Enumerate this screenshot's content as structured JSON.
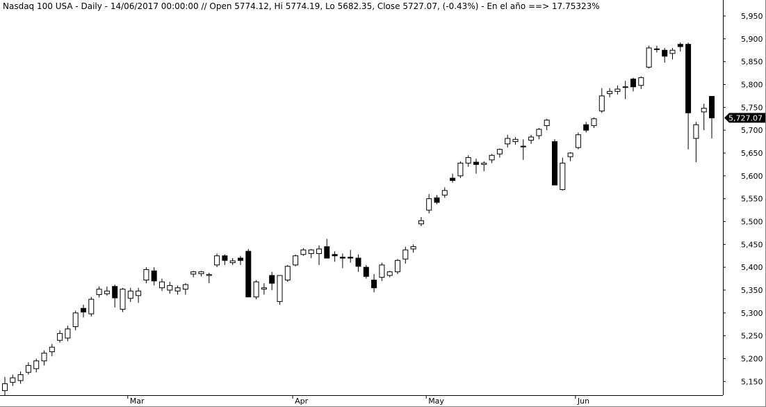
{
  "header": {
    "text": "Nasdaq 100 USA - Daily - 14/06/2017 00:00:00 // Open 5774.12, Hi 5774.19, Lo 5682.35, Close 5727.07, (-0.43%) - En el año ==> 17.75323%"
  },
  "chart_data": {
    "type": "candlestick",
    "symbol": "Nasdaq 100 USA",
    "timeframe": "Daily",
    "last_date": "14/06/2017 00:00:00",
    "last_bar": {
      "open": 5774.12,
      "high": 5774.19,
      "low": 5682.35,
      "close": 5727.07,
      "change_pct": -0.43
    },
    "ytd_pct": 17.75323,
    "price_label": "5,727.07",
    "price_label_value": 5727.07,
    "ylim": [
      5120,
      5985
    ],
    "y_ticks": [
      {
        "value": 5150,
        "label": "5,150"
      },
      {
        "value": 5200,
        "label": "5,200"
      },
      {
        "value": 5250,
        "label": "5,250"
      },
      {
        "value": 5300,
        "label": "5,300"
      },
      {
        "value": 5350,
        "label": "5,350"
      },
      {
        "value": 5400,
        "label": "5,400"
      },
      {
        "value": 5450,
        "label": "5,450"
      },
      {
        "value": 5500,
        "label": "5,500"
      },
      {
        "value": 5550,
        "label": "5,550"
      },
      {
        "value": 5600,
        "label": "5,600"
      },
      {
        "value": 5650,
        "label": "5,650"
      },
      {
        "value": 5700,
        "label": "5,700"
      },
      {
        "value": 5750,
        "label": "5,750"
      },
      {
        "value": 5800,
        "label": "5,800"
      },
      {
        "value": 5850,
        "label": "5,850"
      },
      {
        "value": 5900,
        "label": "5,900"
      },
      {
        "value": 5950,
        "label": "5,950"
      }
    ],
    "x_ticks": [
      {
        "index": 16,
        "label": "Mar"
      },
      {
        "index": 37,
        "label": "Apr"
      },
      {
        "index": 54,
        "label": "May"
      },
      {
        "index": 73,
        "label": "Jun"
      }
    ],
    "candles": [
      [
        5130,
        5160,
        5120,
        5145
      ],
      [
        5148,
        5165,
        5140,
        5158
      ],
      [
        5152,
        5172,
        5145,
        5165
      ],
      [
        5170,
        5192,
        5165,
        5185
      ],
      [
        5178,
        5200,
        5170,
        5195
      ],
      [
        5195,
        5218,
        5185,
        5212
      ],
      [
        5215,
        5232,
        5205,
        5225
      ],
      [
        5240,
        5262,
        5235,
        5255
      ],
      [
        5245,
        5272,
        5238,
        5265
      ],
      [
        5270,
        5305,
        5262,
        5300
      ],
      [
        5310,
        5318,
        5290,
        5302
      ],
      [
        5298,
        5335,
        5292,
        5330
      ],
      [
        5340,
        5358,
        5334,
        5352
      ],
      [
        5342,
        5358,
        5338,
        5348
      ],
      [
        5358,
        5362,
        5312,
        5333
      ],
      [
        5308,
        5355,
        5302,
        5352
      ],
      [
        5332,
        5355,
        5324,
        5348
      ],
      [
        5338,
        5355,
        5322,
        5348
      ],
      [
        5372,
        5400,
        5365,
        5395
      ],
      [
        5392,
        5400,
        5360,
        5370
      ],
      [
        5355,
        5375,
        5348,
        5368
      ],
      [
        5350,
        5368,
        5342,
        5360
      ],
      [
        5348,
        5360,
        5340,
        5355
      ],
      [
        5352,
        5365,
        5340,
        5362
      ],
      [
        5385,
        5392,
        5378,
        5390
      ],
      [
        5386,
        5392,
        5380,
        5390
      ],
      [
        5382,
        5388,
        5365,
        5384
      ],
      [
        5405,
        5430,
        5400,
        5425
      ],
      [
        5425,
        5428,
        5405,
        5415
      ],
      [
        5410,
        5420,
        5405,
        5414
      ],
      [
        5420,
        5425,
        5405,
        5415
      ],
      [
        5435,
        5440,
        5335,
        5335
      ],
      [
        5335,
        5372,
        5330,
        5368
      ],
      [
        5352,
        5365,
        5340,
        5355
      ],
      [
        5382,
        5390,
        5350,
        5365
      ],
      [
        5325,
        5382,
        5318,
        5382
      ],
      [
        5372,
        5405,
        5368,
        5402
      ],
      [
        5405,
        5428,
        5402,
        5425
      ],
      [
        5428,
        5442,
        5425,
        5438
      ],
      [
        5430,
        5440,
        5420,
        5438
      ],
      [
        5430,
        5448,
        5405,
        5440
      ],
      [
        5445,
        5462,
        5420,
        5420
      ],
      [
        5428,
        5435,
        5412,
        5425
      ],
      [
        5422,
        5430,
        5398,
        5420
      ],
      [
        5422,
        5438,
        5410,
        5420
      ],
      [
        5420,
        5428,
        5390,
        5402
      ],
      [
        5400,
        5405,
        5375,
        5380
      ],
      [
        5372,
        5385,
        5345,
        5355
      ],
      [
        5378,
        5410,
        5370,
        5405
      ],
      [
        5382,
        5392,
        5378,
        5390
      ],
      [
        5390,
        5418,
        5385,
        5415
      ],
      [
        5418,
        5445,
        5408,
        5438
      ],
      [
        5440,
        5450,
        5432,
        5445
      ],
      [
        5495,
        5510,
        5490,
        5502
      ],
      [
        5525,
        5560,
        5518,
        5550
      ],
      [
        5552,
        5558,
        5538,
        5542
      ],
      [
        5558,
        5575,
        5552,
        5568
      ],
      [
        5595,
        5605,
        5585,
        5590
      ],
      [
        5600,
        5632,
        5595,
        5628
      ],
      [
        5628,
        5645,
        5620,
        5640
      ],
      [
        5630,
        5638,
        5605,
        5625
      ],
      [
        5625,
        5632,
        5610,
        5628
      ],
      [
        5635,
        5648,
        5628,
        5645
      ],
      [
        5648,
        5660,
        5640,
        5658
      ],
      [
        5670,
        5690,
        5662,
        5682
      ],
      [
        5675,
        5685,
        5668,
        5680
      ],
      [
        5665,
        5680,
        5635,
        5665
      ],
      [
        5678,
        5690,
        5670,
        5685
      ],
      [
        5688,
        5705,
        5680,
        5702
      ],
      [
        5710,
        5725,
        5700,
        5722
      ],
      [
        5675,
        5680,
        5580,
        5580
      ],
      [
        5570,
        5640,
        5568,
        5628
      ],
      [
        5642,
        5652,
        5632,
        5650
      ],
      [
        5662,
        5695,
        5658,
        5690
      ],
      [
        5712,
        5718,
        5695,
        5700
      ],
      [
        5710,
        5728,
        5705,
        5725
      ],
      [
        5742,
        5792,
        5738,
        5775
      ],
      [
        5780,
        5792,
        5772,
        5785
      ],
      [
        5785,
        5798,
        5778,
        5790
      ],
      [
        5795,
        5808,
        5768,
        5795
      ],
      [
        5812,
        5815,
        5785,
        5795
      ],
      [
        5798,
        5818,
        5790,
        5815
      ],
      [
        5838,
        5885,
        5835,
        5880
      ],
      [
        5878,
        5885,
        5870,
        5878
      ],
      [
        5875,
        5880,
        5848,
        5862
      ],
      [
        5868,
        5880,
        5855,
        5875
      ],
      [
        5888,
        5892,
        5872,
        5883
      ],
      [
        5888,
        5892,
        5658,
        5738
      ],
      [
        5682,
        5718,
        5630,
        5712
      ],
      [
        5740,
        5758,
        5700,
        5748
      ],
      [
        5774,
        5774,
        5682,
        5727
      ]
    ]
  },
  "colors": {
    "background": "#ffffff",
    "up_fill": "#ffffff",
    "down_fill": "#000000",
    "outline": "#000000",
    "axis": "#000000",
    "grid": "#808080",
    "price_tag_bg": "#000000",
    "price_tag_text": "#ffffff"
  }
}
